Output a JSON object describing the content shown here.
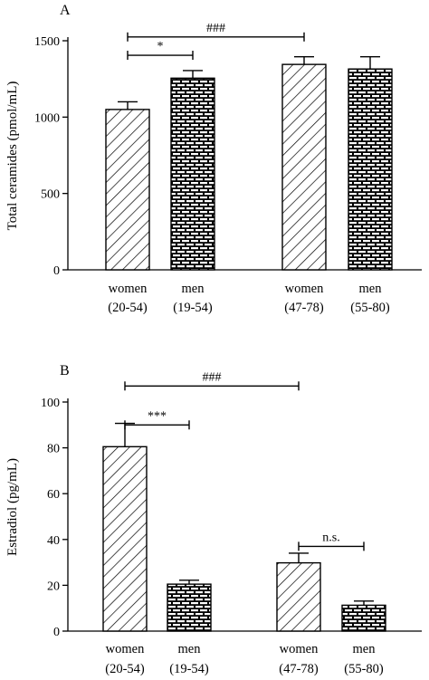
{
  "chart_data": [
    {
      "type": "bar",
      "panel_label": "A",
      "ylabel": "Total ceramides (pmol/mL)",
      "ylim": [
        0,
        1500
      ],
      "yticks": [
        0,
        500,
        1000,
        1500
      ],
      "categories": [
        {
          "line1": "women",
          "line2": "(20-54)"
        },
        {
          "line1": "men",
          "line2": "(19-54)"
        },
        {
          "line1": "women",
          "line2": "(47-78)"
        },
        {
          "line1": "men",
          "line2": "(55-80)"
        }
      ],
      "values": [
        1050,
        1255,
        1345,
        1315
      ],
      "errors": [
        50,
        50,
        50,
        80
      ],
      "patterns": [
        "diagonal-hatch",
        "brick",
        "diagonal-hatch",
        "brick"
      ],
      "significance": [
        {
          "label": "*",
          "from": 0,
          "to": 1,
          "level": 1405
        },
        {
          "label": "###",
          "from": 0,
          "to": 2,
          "level": 1525
        }
      ]
    },
    {
      "type": "bar",
      "panel_label": "B",
      "ylabel": "Estradiol (pg/mL)",
      "ylim": [
        0,
        100
      ],
      "yticks": [
        0,
        20,
        40,
        60,
        80,
        100
      ],
      "categories": [
        {
          "line1": "women",
          "line2": "(20-54)"
        },
        {
          "line1": "men",
          "line2": "(19-54)"
        },
        {
          "line1": "women",
          "line2": "(47-78)"
        },
        {
          "line1": "men",
          "line2": "(55-80)"
        }
      ],
      "values": [
        80.5,
        20.5,
        29.8,
        11.3
      ],
      "errors": [
        10.2,
        1.7,
        4.2,
        1.8
      ],
      "patterns": [
        "diagonal-hatch",
        "brick",
        "diagonal-hatch",
        "brick"
      ],
      "significance": [
        {
          "label": "***",
          "from": 0,
          "to": 1,
          "level": 90
        },
        {
          "label": "###",
          "from": 0,
          "to": 2,
          "level": 107
        },
        {
          "label": "n.s.",
          "from": 2,
          "to": 3,
          "level": 37
        }
      ]
    }
  ]
}
